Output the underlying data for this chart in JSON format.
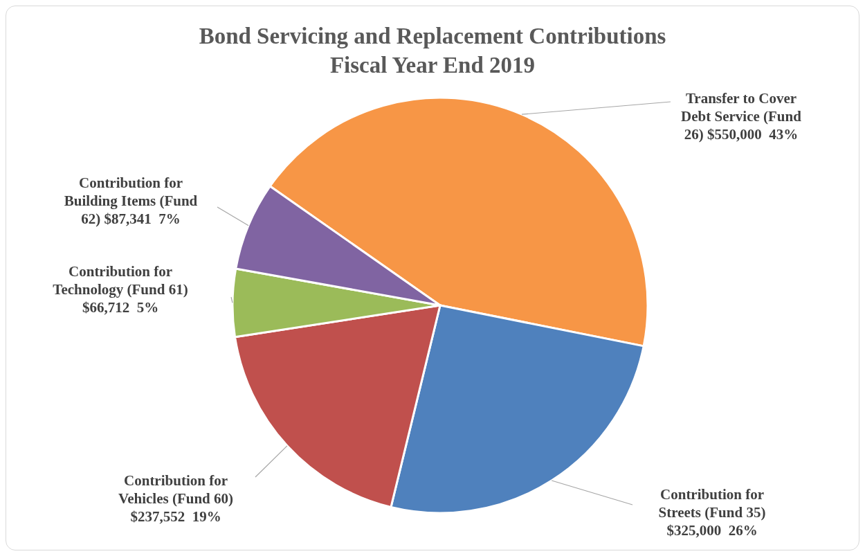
{
  "chart_data": {
    "type": "pie",
    "title": "Bond Servicing and Replacement Contributions Fiscal Year End 2019",
    "categories": [
      "Transfer to Cover Debt Service (Fund 26)",
      "Contribution for Streets (Fund 35)",
      "Contribution for Vehicles (Fund 60)",
      "Contribution for Technology (Fund 61)",
      "Contribution for Building Items (Fund 62)"
    ],
    "values": [
      550000,
      325000,
      237552,
      66712,
      87341
    ],
    "colors": [
      "#f79646",
      "#4f81bd",
      "#c0504d",
      "#9bbb59",
      "#8064a2"
    ],
    "value_labels": [
      "$550,000  43%",
      "$325,000  26%",
      "$237,552  19%",
      "$66,712  5%",
      "$87,341  7%"
    ]
  }
}
